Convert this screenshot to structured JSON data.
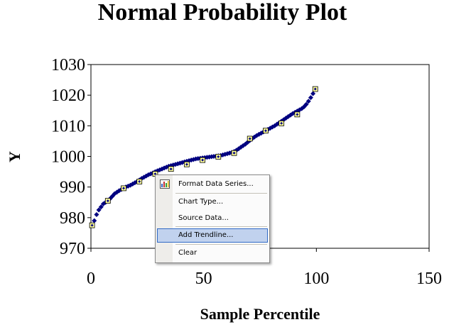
{
  "chart_data": {
    "type": "scatter",
    "title": "Normal Probability Plot",
    "xlabel": "Sample Percentile",
    "ylabel": "Y",
    "xlim": [
      0,
      150
    ],
    "ylim": [
      970,
      1030
    ],
    "xticks": [
      "0",
      "50",
      "100",
      "150"
    ],
    "yticks": [
      "1030",
      "1020",
      "1010",
      "1000",
      "990",
      "980",
      "970"
    ],
    "grid": false,
    "series": [
      {
        "color": "#000080",
        "x": [
          0.5,
          1.5,
          2.5,
          3.5,
          4.5,
          5.5,
          6.5,
          7.5,
          8.5,
          9.5,
          10.5,
          11.5,
          12.5,
          13.5,
          14.5,
          15.5,
          16.5,
          17.5,
          18.5,
          19.5,
          20.5,
          21.5,
          22.5,
          23.5,
          24.5,
          25.5,
          26.5,
          27.5,
          28.5,
          29.5,
          30.5,
          31.5,
          32.5,
          33.5,
          34.5,
          35.5,
          36.5,
          37.5,
          38.5,
          39.5,
          40.5,
          41.5,
          42.5,
          43.5,
          44.5,
          45.5,
          46.5,
          47.5,
          48.5,
          49.5,
          50.5,
          51.5,
          52.5,
          53.5,
          54.5,
          55.5,
          56.5,
          57.5,
          58.5,
          59.5,
          60.5,
          61.5,
          62.5,
          63.5,
          64.5,
          65.5,
          66.5,
          67.5,
          68.5,
          69.5,
          70.5,
          71.5,
          72.5,
          73.5,
          74.5,
          75.5,
          76.5,
          77.5,
          78.5,
          79.5,
          80.5,
          81.5,
          82.5,
          83.5,
          84.5,
          85.5,
          86.5,
          87.5,
          88.5,
          89.5,
          90.5,
          91.5,
          92.5,
          93.5,
          94.5,
          95.5,
          96.5,
          97.5,
          98.5,
          99.5
        ],
        "y": [
          977.5,
          979,
          981,
          982.5,
          983.5,
          984.5,
          985,
          985.5,
          986.2,
          987,
          987.8,
          988.3,
          988.8,
          989.2,
          989.6,
          990,
          990.3,
          990.6,
          991,
          991.4,
          991.8,
          992.3,
          992.8,
          993.2,
          993.6,
          994,
          994.3,
          994.6,
          995,
          995.3,
          995.6,
          995.9,
          996.2,
          996.5,
          996.8,
          997,
          997.2,
          997.4,
          997.6,
          997.8,
          998,
          998.2,
          998.4,
          998.6,
          998.8,
          999,
          999.2,
          999.3,
          999.4,
          999.5,
          999.6,
          999.7,
          999.8,
          999.9,
          1000,
          1000.1,
          1000.2,
          1000.3,
          1000.5,
          1000.7,
          1000.9,
          1001.1,
          1001.3,
          1001.6,
          1002,
          1002.5,
          1003,
          1003.5,
          1004,
          1004.6,
          1005.2,
          1005.8,
          1006.3,
          1006.8,
          1007.2,
          1007.6,
          1008,
          1008.4,
          1008.8,
          1009.2,
          1009.6,
          1010,
          1010.5,
          1011,
          1011.5,
          1012,
          1012.5,
          1013,
          1013.5,
          1014,
          1014.4,
          1014.8,
          1015.2,
          1015.6,
          1016.2,
          1017,
          1018,
          1019.2,
          1020.5,
          1022
        ]
      },
      {
        "color": "#ffff99",
        "x": [
          0.5,
          7.5,
          14.5,
          21.5,
          28.5,
          35.5,
          42.5,
          49.5,
          56.5,
          63.5,
          70.5,
          77.5,
          84.5,
          91.5,
          99.5
        ],
        "y": [
          977.5,
          985.5,
          989.6,
          991.8,
          994.3,
          995.9,
          997.4,
          998.8,
          999.9,
          1001.1,
          1005.8,
          1008.4,
          1010.8,
          1013.7,
          1022
        ]
      }
    ]
  },
  "context_menu": {
    "items": [
      {
        "label": "Format Data Series...",
        "icon": "format-data-series-icon"
      },
      {
        "label": "Chart Type..."
      },
      {
        "label": "Source Data..."
      },
      {
        "label": "Add Trendline...",
        "highlighted": true
      },
      {
        "label": "Clear"
      }
    ]
  }
}
